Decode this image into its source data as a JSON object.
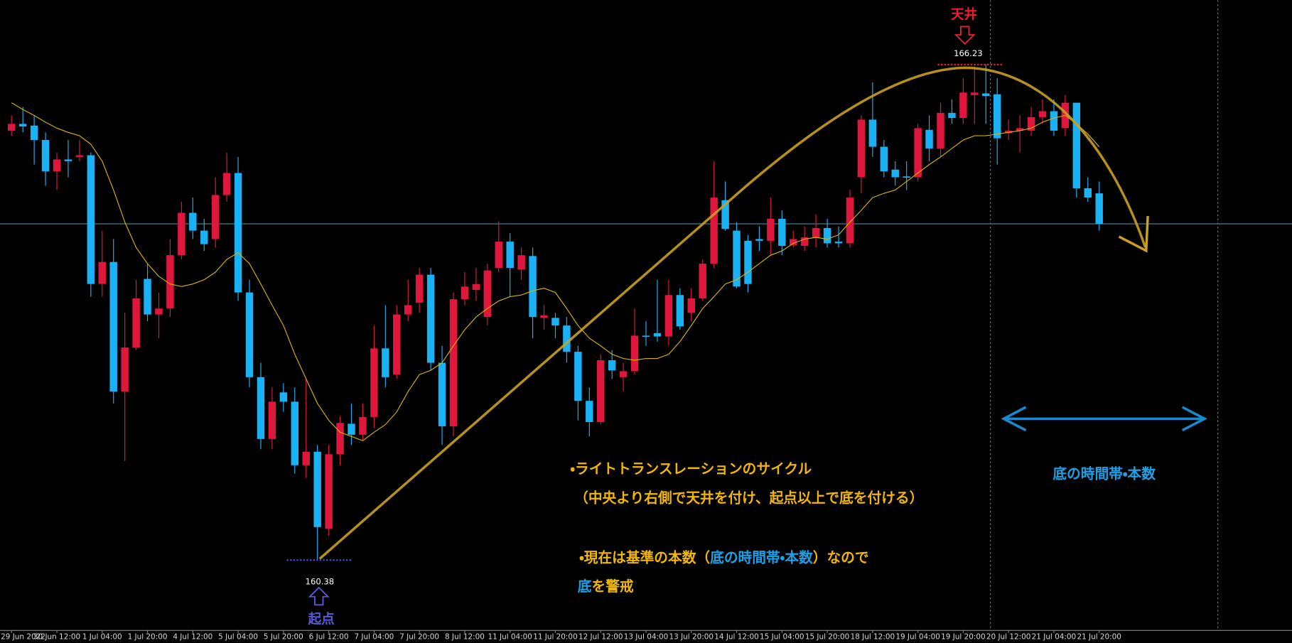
{
  "chart_data": {
    "type": "candlestick",
    "categories": [
      "29 Jun 2022",
      null,
      null,
      null,
      "30 Jun 12:00",
      null,
      null,
      null,
      "1 Jul 04:00",
      null,
      null,
      null,
      "1 Jul 20:00",
      null,
      null,
      null,
      "4 Jul 12:00",
      null,
      null,
      null,
      "5 Jul 04:00",
      null,
      null,
      null,
      "5 Jul 20:00",
      null,
      null,
      null,
      "6 Jul 12:00",
      null,
      null,
      null,
      "7 Jul 04:00",
      null,
      null,
      null,
      "7 Jul 20:00",
      null,
      null,
      null,
      "8 Jul 12:00",
      null,
      null,
      null,
      "11 Jul 04:00",
      null,
      null,
      null,
      "11 Jul 20:00",
      null,
      null,
      null,
      "12 Jul 12:00",
      null,
      null,
      null,
      "13 Jul 04:00",
      null,
      null,
      null,
      "13 Jul 20:00",
      null,
      null,
      null,
      "14 Jul 12:00",
      null,
      null,
      null,
      "15 Jul 04:00",
      null,
      null,
      null,
      "15 Jul 20:00",
      null,
      null,
      null,
      "18 Jul 12:00",
      null,
      null,
      null,
      "19 Jul 04:00",
      null,
      null,
      null,
      "19 Jul 20:00",
      null,
      null,
      null,
      "20 Jul 12:00",
      null,
      null,
      null,
      "21 Jul 04:00",
      null,
      null,
      null,
      "21 Jul 20:00"
    ],
    "open": [
      165.45,
      165.53,
      165.51,
      165.34,
      164.97,
      165.11,
      165.14,
      165.16,
      163.64,
      163.9,
      162.37,
      162.89,
      163.7,
      163.28,
      163.35,
      163.98,
      164.48,
      164.27,
      164.17,
      164.69,
      164.95,
      163.54,
      162.54,
      161.81,
      162.36,
      162.25,
      161.5,
      161.66,
      160.75,
      161.63,
      161.99,
      161.86,
      162.07,
      162.88,
      162.57,
      163.28,
      163.42,
      163.75,
      162.71,
      161.96,
      163.46,
      163.57,
      163.25,
      163.83,
      164.14,
      163.81,
      163.97,
      163.24,
      163.24,
      163.15,
      162.84,
      162.26,
      162.01,
      162.74,
      162.54,
      162.61,
      163.03,
      163.06,
      163.02,
      163.51,
      163.3,
      163.47,
      163.88,
      164.63,
      164.27,
      164.15,
      164.17,
      164.15,
      164.41,
      164.1,
      164.09,
      164.19,
      164.3,
      164.14,
      164.12,
      164.9,
      165.58,
      165.26,
      164.99,
      164.91,
      164.9,
      165.46,
      165.24,
      165.66,
      165.6,
      165.87,
      165.89,
      165.88,
      165.42,
      165.45,
      165.45,
      165.61,
      165.68,
      165.48,
      165.78,
      164.77,
      164.71
    ],
    "high": [
      165.63,
      165.73,
      165.63,
      165.43,
      165.19,
      165.34,
      165.34,
      165.19,
      164.27,
      164.17,
      163.3,
      163.69,
      163.88,
      163.54,
      164.17,
      164.61,
      164.66,
      164.41,
      164.9,
      165.19,
      165.14,
      163.69,
      162.71,
      162.42,
      162.47,
      162.42,
      162.52,
      161.74,
      161.74,
      162.08,
      162.23,
      162.23,
      163.15,
      163.39,
      163.39,
      163.69,
      163.83,
      163.83,
      162.91,
      163.54,
      163.78,
      163.83,
      163.88,
      164.38,
      164.24,
      164.07,
      164.07,
      163.39,
      163.3,
      163.25,
      162.91,
      162.42,
      162.81,
      162.86,
      162.71,
      163.35,
      163.2,
      163.69,
      163.69,
      163.59,
      163.59,
      163.93,
      165.09,
      164.85,
      164.37,
      164.22,
      164.32,
      164.66,
      164.51,
      164.27,
      164.32,
      164.46,
      164.41,
      164.32,
      164.75,
      165.63,
      166.02,
      165.34,
      165.09,
      165.09,
      165.53,
      165.63,
      165.78,
      165.82,
      166.07,
      166.21,
      166.23,
      166.07,
      165.58,
      165.63,
      165.73,
      165.82,
      165.82,
      165.87,
      165.78,
      164.9,
      164.85
    ],
    "low": [
      165.39,
      165.43,
      165.05,
      164.8,
      164.75,
      164.9,
      165.09,
      163.49,
      163.49,
      162.23,
      161.55,
      162.86,
      163.2,
      163.0,
      163.25,
      163.93,
      164.17,
      164.03,
      164.07,
      164.61,
      163.44,
      162.42,
      161.69,
      161.69,
      162.13,
      161.4,
      161.35,
      160.38,
      160.67,
      161.5,
      161.74,
      161.79,
      161.94,
      162.42,
      162.52,
      163.2,
      163.3,
      162.62,
      161.74,
      161.84,
      163.39,
      163.44,
      163.15,
      163.78,
      163.49,
      163.69,
      163.0,
      163.1,
      163.0,
      162.71,
      162.03,
      161.84,
      161.98,
      162.52,
      162.37,
      162.57,
      162.91,
      162.96,
      162.91,
      163.1,
      163.2,
      163.44,
      163.83,
      164.27,
      163.59,
      163.54,
      164.03,
      163.98,
      163.98,
      164.07,
      164.03,
      164.07,
      164.07,
      164.07,
      164.07,
      164.71,
      165.14,
      164.9,
      164.8,
      164.75,
      164.85,
      165.09,
      165.14,
      165.53,
      165.53,
      165.53,
      165.53,
      165.05,
      165.34,
      165.19,
      165.39,
      165.53,
      165.39,
      165.39,
      164.66,
      164.61,
      164.27
    ],
    "close": [
      165.53,
      165.5,
      165.34,
      164.97,
      165.11,
      165.09,
      165.16,
      163.64,
      163.9,
      162.37,
      162.89,
      163.47,
      163.28,
      163.35,
      163.98,
      164.48,
      164.27,
      164.11,
      164.69,
      164.95,
      163.54,
      162.54,
      161.81,
      162.25,
      162.25,
      161.5,
      161.66,
      160.77,
      161.63,
      162.0,
      161.86,
      162.07,
      162.88,
      162.54,
      163.28,
      163.39,
      163.75,
      162.71,
      161.96,
      163.46,
      163.61,
      163.64,
      163.8,
      164.14,
      163.83,
      163.98,
      163.25,
      163.27,
      163.15,
      162.84,
      162.26,
      162.01,
      162.74,
      162.62,
      162.61,
      163.03,
      163.02,
      163.02,
      163.51,
      163.14,
      163.47,
      163.88,
      164.66,
      164.29,
      163.61,
      163.64,
      164.15,
      164.41,
      164.09,
      164.17,
      164.19,
      164.3,
      164.12,
      164.12,
      164.66,
      165.58,
      165.26,
      164.97,
      164.9,
      164.9,
      165.48,
      165.24,
      165.66,
      165.6,
      165.9,
      165.9,
      165.86,
      165.36,
      165.45,
      165.48,
      165.61,
      165.68,
      165.45,
      165.78,
      164.77,
      164.66,
      164.35
    ],
    "up_color": "#e0173d",
    "down_color": "#1ab2f5",
    "ma": {
      "color": "#d4b000",
      "values": [
        165.78,
        165.7,
        165.63,
        165.55,
        165.48,
        165.43,
        165.39,
        165.29,
        165.09,
        164.75,
        164.37,
        164.07,
        163.88,
        163.73,
        163.64,
        163.61,
        163.64,
        163.69,
        163.78,
        163.93,
        164.01,
        163.88,
        163.64,
        163.39,
        163.15,
        162.81,
        162.52,
        162.23,
        162.03,
        161.89,
        161.84,
        161.79,
        161.89,
        161.98,
        162.13,
        162.37,
        162.57,
        162.62,
        162.71,
        162.91,
        163.1,
        163.25,
        163.35,
        163.44,
        163.49,
        163.51,
        163.56,
        163.59,
        163.54,
        163.35,
        163.15,
        163.0,
        162.91,
        162.81,
        162.76,
        162.74,
        162.76,
        162.76,
        162.81,
        162.96,
        163.15,
        163.35,
        163.49,
        163.64,
        163.69,
        163.78,
        163.88,
        163.98,
        164.03,
        164.12,
        164.17,
        164.19,
        164.17,
        164.22,
        164.37,
        164.51,
        164.66,
        164.71,
        164.75,
        164.85,
        164.95,
        165.05,
        165.14,
        165.24,
        165.34,
        165.39,
        165.39,
        165.41,
        165.43,
        165.45,
        165.48,
        165.55,
        165.6,
        165.63,
        165.53,
        165.41,
        165.26
      ]
    },
    "price_line": 164.35,
    "ylim": [
      159.55,
      166.99
    ],
    "annotations": {
      "peak": {
        "label": "天井",
        "value": 166.23
      },
      "start": {
        "label": "起点",
        "value": 160.38
      },
      "note1": "・ライトトランスレーションのサイクル",
      "note2": "（中央より右側で天井を付け、起点以上で底を付ける）",
      "note3": [
        "・現在は基準の本数（",
        "底の時間帯・本数",
        "）なので"
      ],
      "note4": [
        "底",
        "を警戒"
      ],
      "range_label": "底の時間帯・本数"
    }
  }
}
